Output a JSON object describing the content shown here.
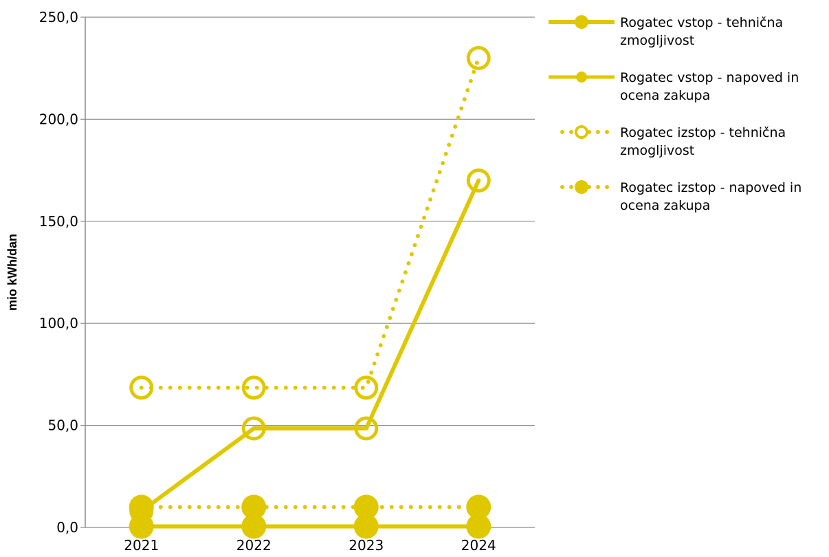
{
  "chart_data": {
    "type": "line",
    "categories": [
      "2021",
      "2022",
      "2023",
      "2024"
    ],
    "ylabel": "mio kWh/dan",
    "ylim": [
      0,
      250
    ],
    "yticks": [
      "0,0",
      "50,0",
      "100,0",
      "150,0",
      "200,0",
      "250,0"
    ],
    "ytick_values": [
      0,
      50,
      100,
      150,
      200,
      250
    ],
    "grid": true,
    "legend_position": "right",
    "color": "#e0c800",
    "series": [
      {
        "name": "Rogatec vstop - tehnična zmogljivost",
        "values": [
          8,
          48.5,
          48.5,
          170
        ],
        "line": "solid",
        "marker": "open"
      },
      {
        "name": "Rogatec vstop - napoved in ocena zakupa",
        "values": [
          0.5,
          0.5,
          0.5,
          0.5
        ],
        "line": "solid",
        "marker": "filled"
      },
      {
        "name": "Rogatec izstop - tehnična zmogljivost",
        "values": [
          68.5,
          68.5,
          68.5,
          230
        ],
        "line": "dotted",
        "marker": "open"
      },
      {
        "name": "Rogatec izstop - napoved in ocena zakupa",
        "values": [
          10,
          10,
          10,
          10
        ],
        "line": "dotted",
        "marker": "filled"
      }
    ]
  },
  "legend": {
    "items": [
      {
        "label_line1": "Rogatec vstop - tehnična",
        "label_line2": "zmogljivost"
      },
      {
        "label_line1": "Rogatec vstop - napoved in",
        "label_line2": "ocena zakupa"
      },
      {
        "label_line1": "Rogatec izstop - tehnična",
        "label_line2": "zmogljivost"
      },
      {
        "label_line1": "Rogatec izstop - napoved in",
        "label_line2": "ocena zakupa"
      }
    ]
  }
}
